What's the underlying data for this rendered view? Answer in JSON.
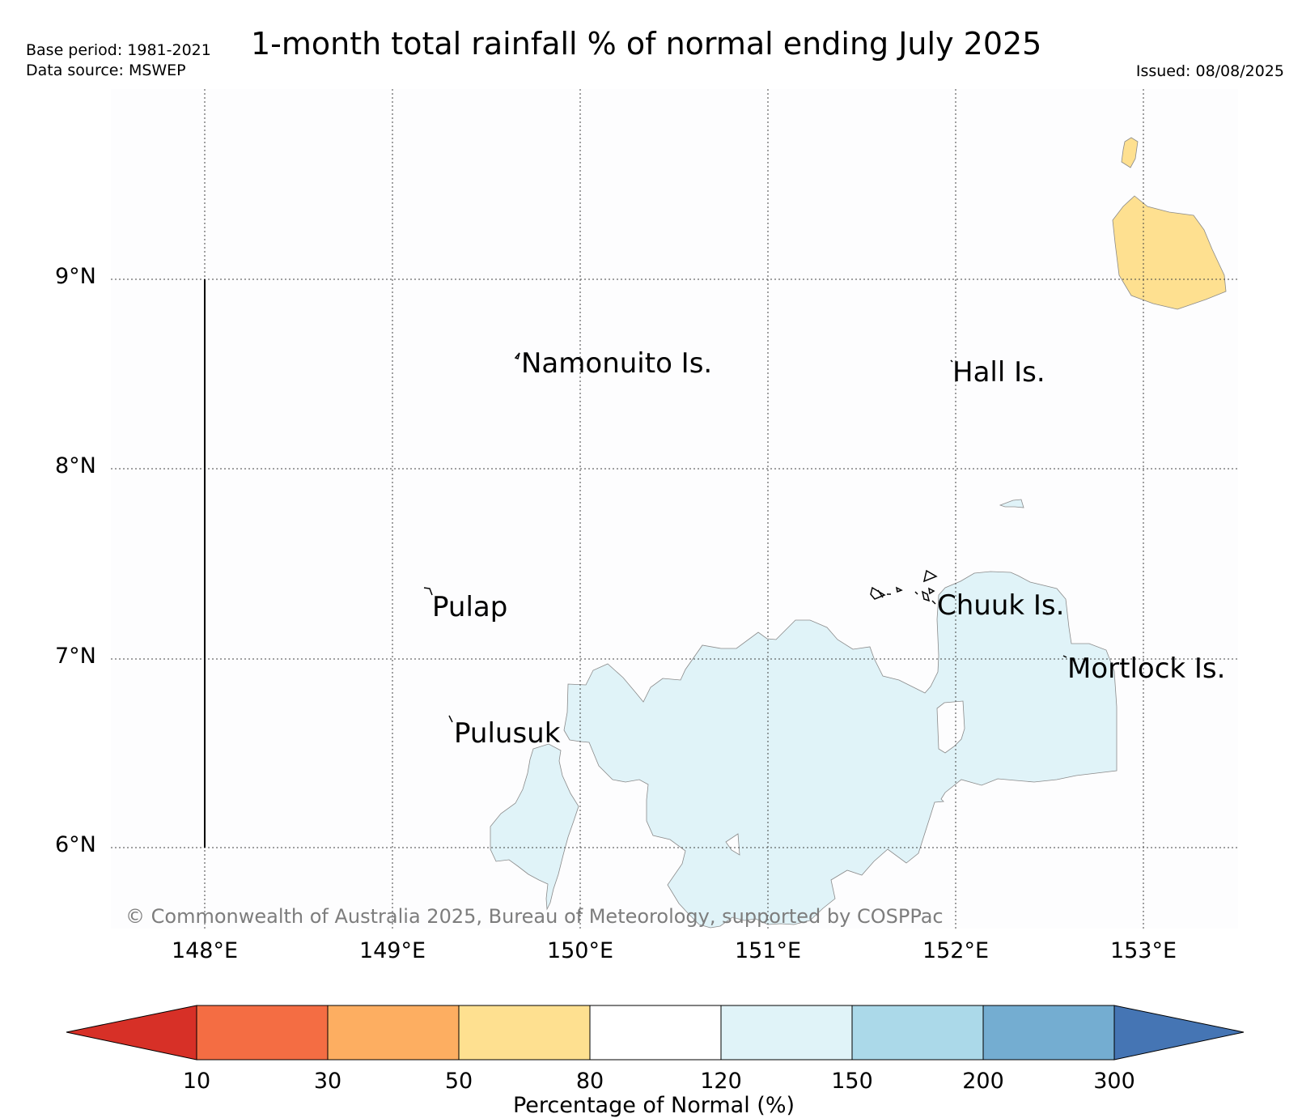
{
  "header": {
    "base_period": "Base period: 1981-2021",
    "data_source": "Data source: MSWEP",
    "title": "1-month total rainfall % of normal ending July 2025",
    "issued": "Issued: 08/08/2025"
  },
  "map": {
    "lat_ticks": [
      "9°N",
      "8°N",
      "7°N",
      "6°N"
    ],
    "lon_ticks": [
      "148°E",
      "149°E",
      "150°E",
      "151°E",
      "152°E",
      "153°E"
    ],
    "place_labels": {
      "namonuito": "Namonuito Is.",
      "hall": "Hall Is.",
      "pulap": "Pulap",
      "chuuk": "Chuuk Is.",
      "mortlock": "Mortlock Is.",
      "pulusuk": "Pulusuk"
    },
    "rainfall_regions": [
      {
        "name": "northeast-patch",
        "category": "50-80"
      },
      {
        "name": "central-patch",
        "category": "120-150"
      },
      {
        "name": "southwest-patch",
        "category": "120-150"
      },
      {
        "name": "small-patch",
        "category": "120-150"
      }
    ],
    "copyright": "© Commonwealth of Australia 2025, Bureau of Meteorology, supported by COSPPac"
  },
  "colorbar": {
    "label": "Percentage of Normal (%)",
    "ticks": [
      "10",
      "30",
      "50",
      "80",
      "120",
      "150",
      "200",
      "300"
    ],
    "colors": {
      "below_10": "#d73027",
      "10_30": "#f46d43",
      "30_50": "#fdae61",
      "50_80": "#fee090",
      "80_120": "#ffffff",
      "120_150": "#e0f3f8",
      "150_200": "#abd9e9",
      "200_300": "#74add1",
      "above_300": "#4575b4"
    }
  }
}
